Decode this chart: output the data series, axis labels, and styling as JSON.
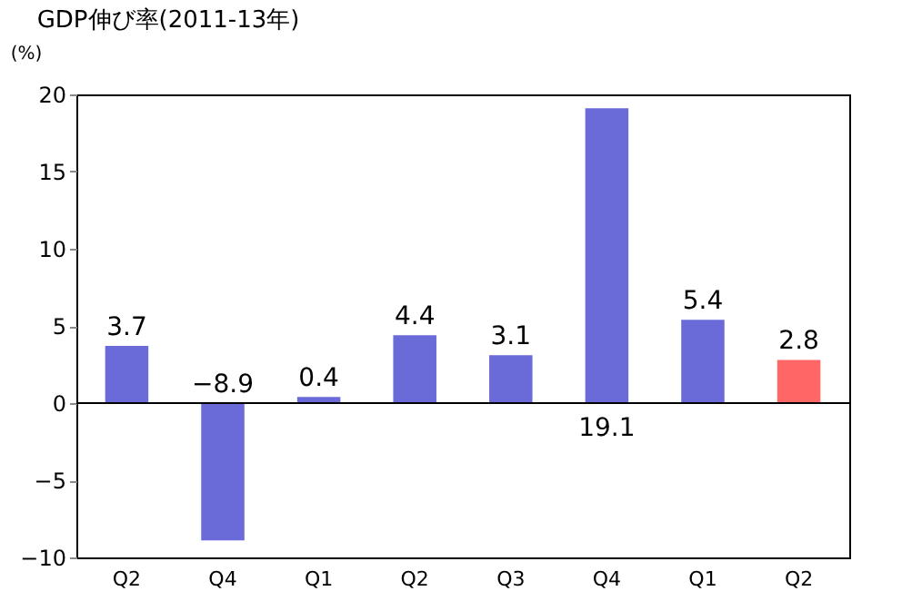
{
  "chart_data": {
    "type": "bar",
    "title": "GDP伸び率(2011-13年)",
    "ylabel": "(%)",
    "categories": [
      "Q2",
      "Q4",
      "Q1",
      "Q2",
      "Q3",
      "Q4",
      "Q1",
      "Q2"
    ],
    "values": [
      3.7,
      -8.9,
      0.4,
      4.4,
      3.1,
      19.1,
      5.4,
      2.8
    ],
    "colors": [
      "#6a6ad8",
      "#6a6ad8",
      "#6a6ad8",
      "#6a6ad8",
      "#6a6ad8",
      "#6a6ad8",
      "#6a6ad8",
      "#ff6666"
    ],
    "ylim": [
      -10,
      20
    ],
    "yticks": [
      -10,
      -5,
      0,
      5,
      10,
      15,
      20
    ],
    "data_labels": true
  }
}
